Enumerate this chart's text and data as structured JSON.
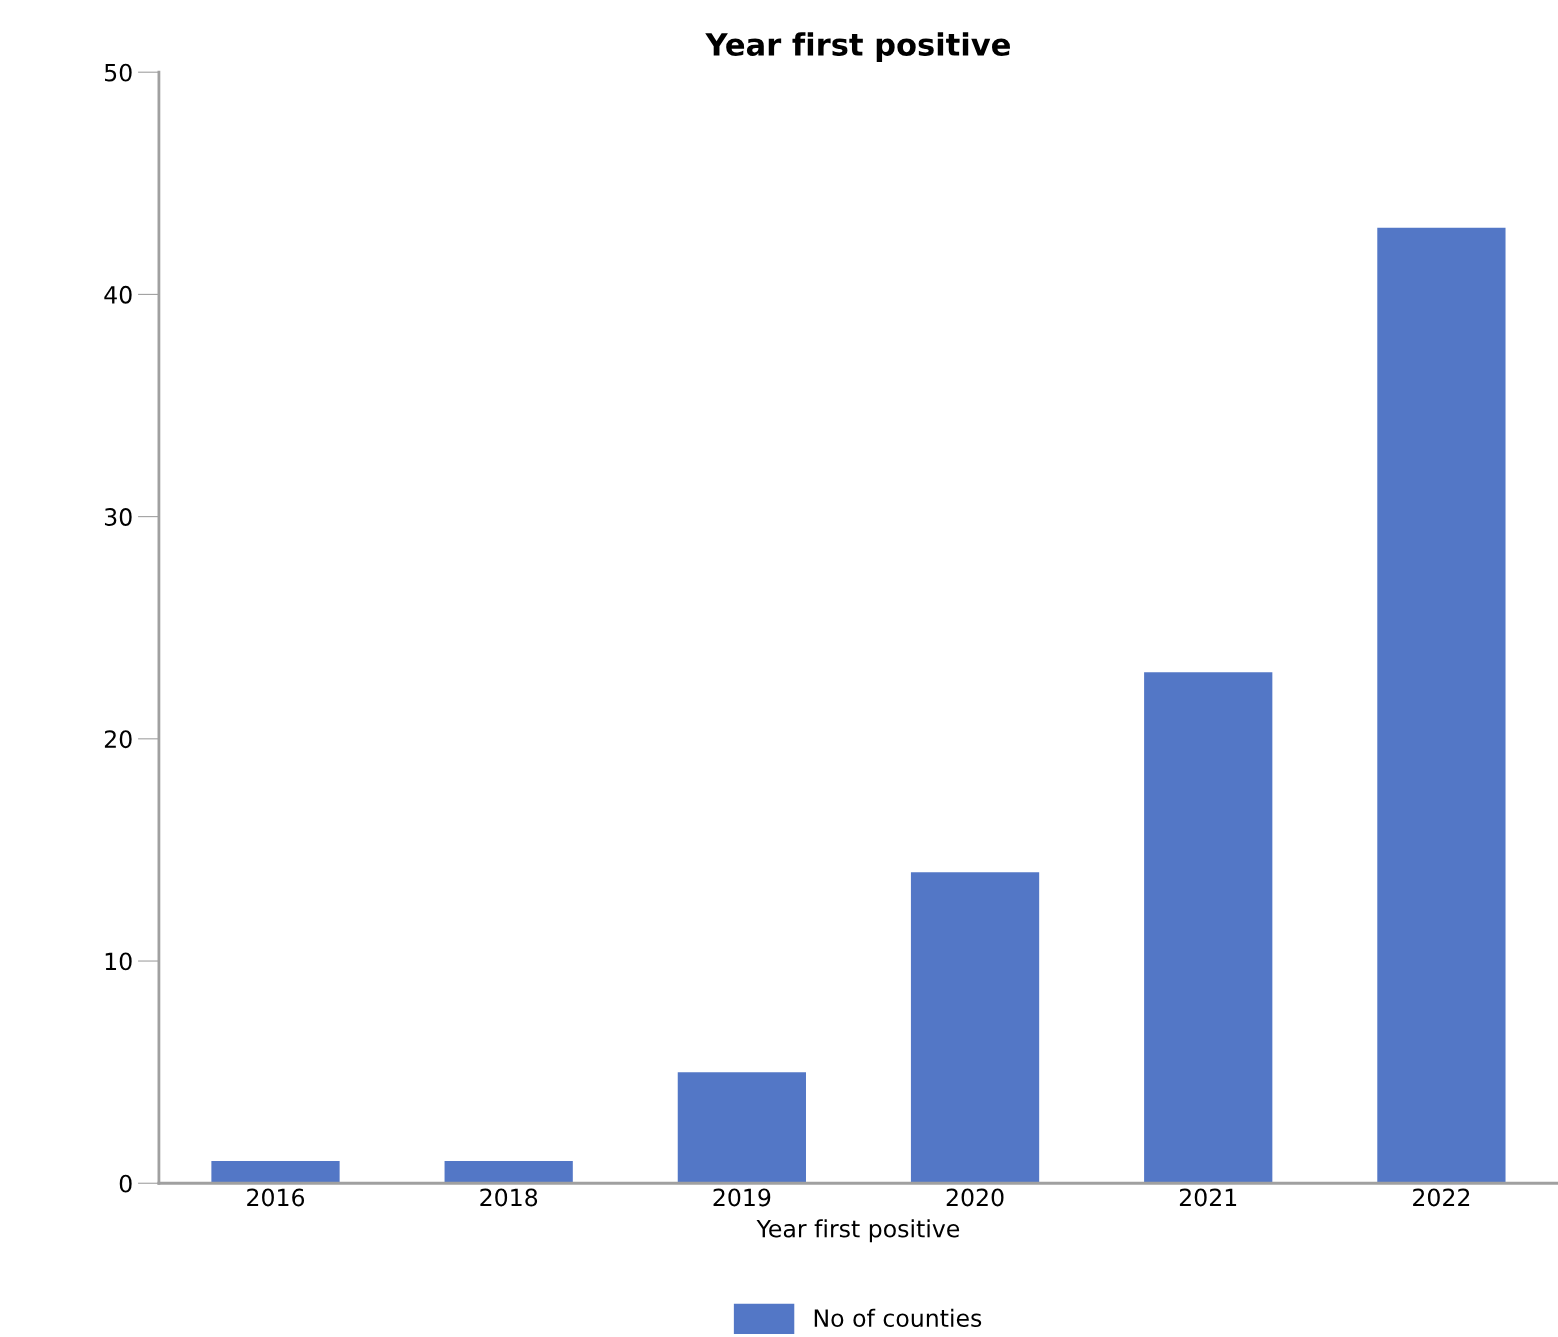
{
  "chart_data": {
    "type": "bar",
    "title": "Year first positive",
    "xlabel": "Year first positive",
    "categories": [
      "2016",
      "2018",
      "2019",
      "2020",
      "2021",
      "2022"
    ],
    "series": [
      {
        "name": "No of counties",
        "color": "#5377c6",
        "values": [
          1,
          1,
          5,
          14,
          23,
          43
        ]
      }
    ],
    "ylim": [
      0,
      50
    ],
    "yticks": [
      0,
      10,
      20,
      30,
      40,
      50
    ],
    "grid": false,
    "legend": "bottom"
  }
}
